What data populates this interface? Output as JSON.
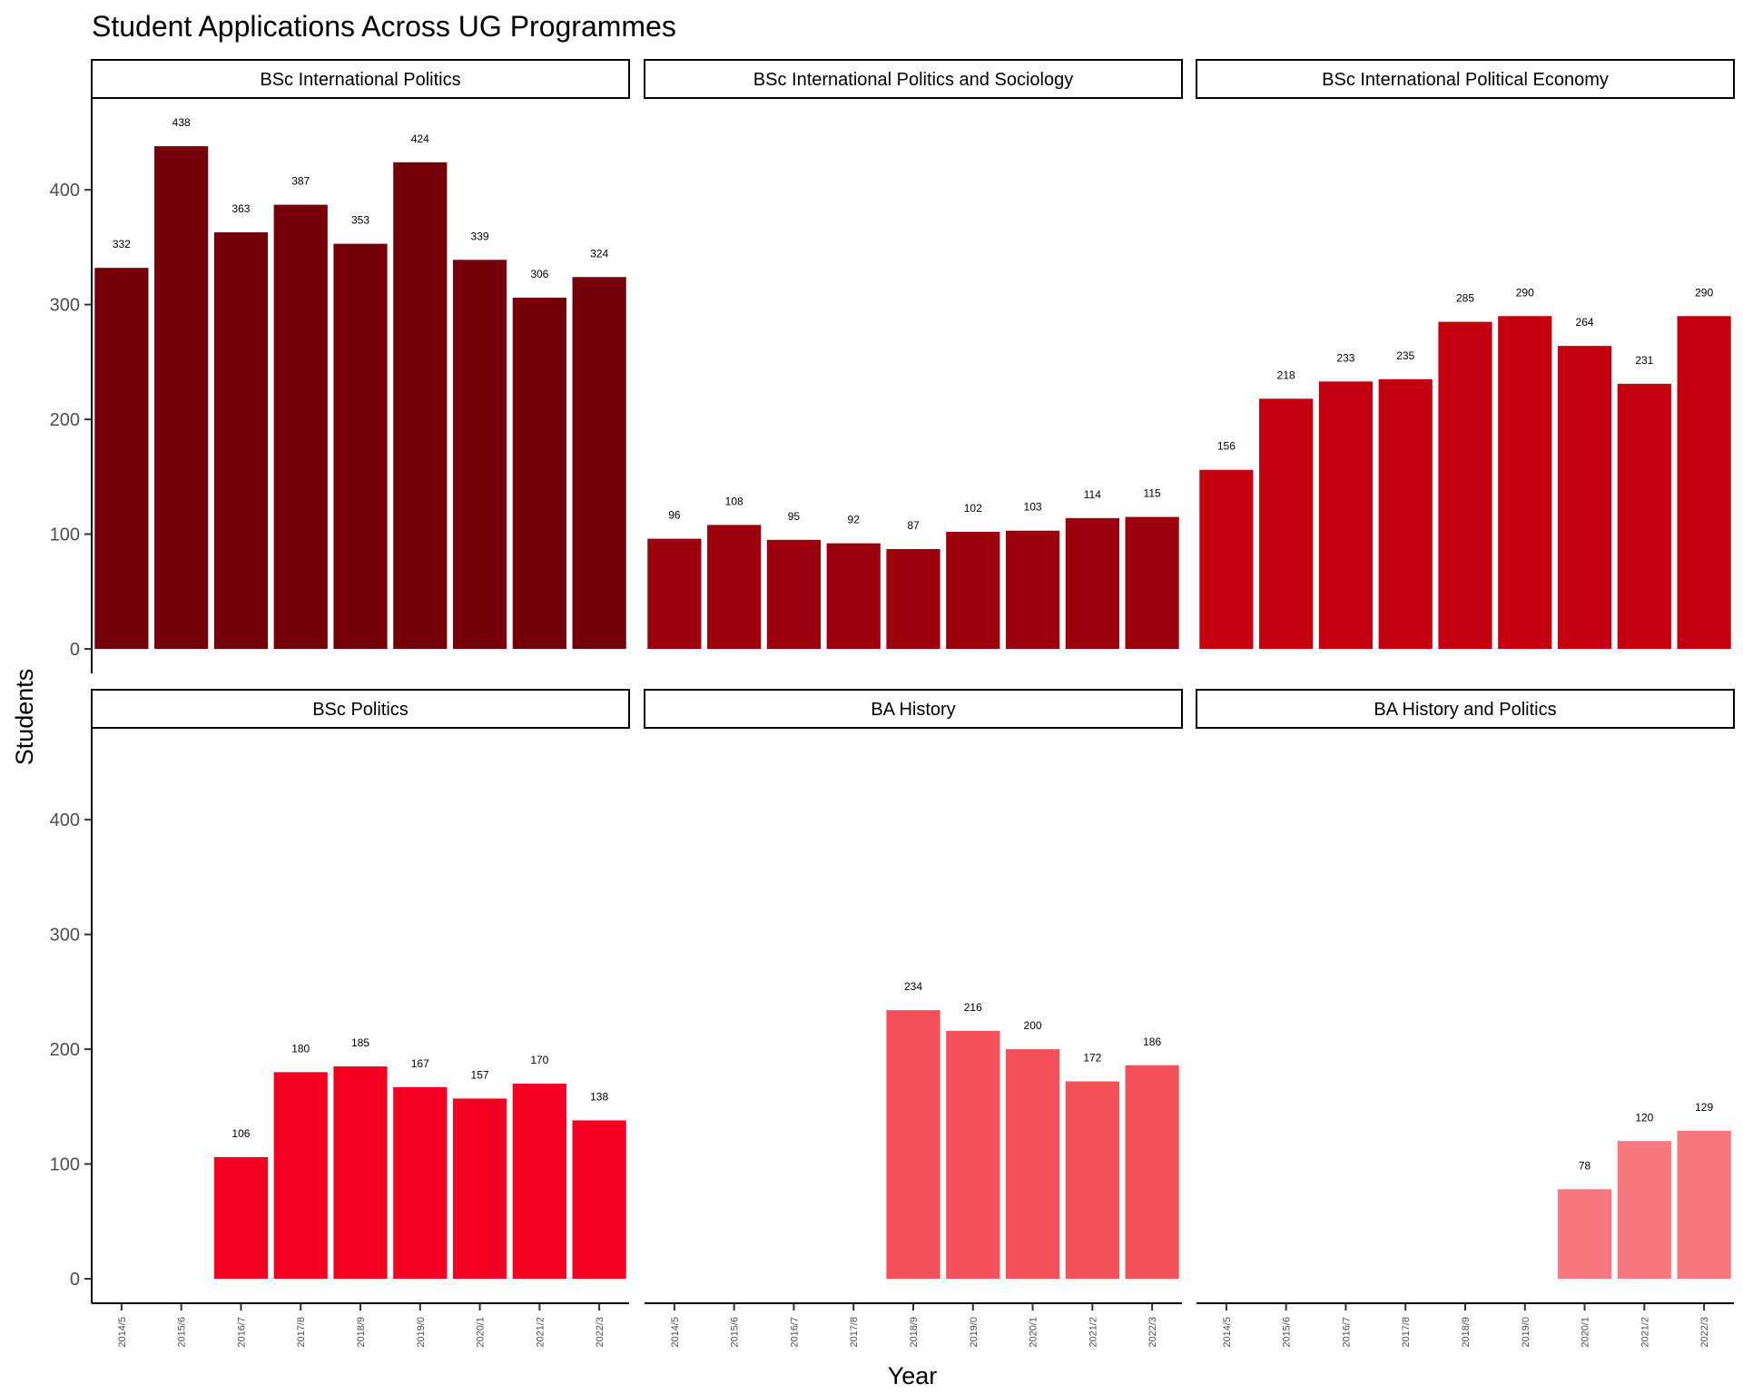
{
  "chart_data": {
    "type": "bar",
    "title": "Student Applications Across UG Programmes",
    "xlabel": "Year",
    "ylabel": "Students",
    "ylim": [
      0,
      480
    ],
    "yticks": [
      0,
      100,
      200,
      300,
      400
    ],
    "categories": [
      "2014/5",
      "2015/6",
      "2016/7",
      "2017/8",
      "2018/9",
      "2019/0",
      "2020/1",
      "2021/2",
      "2022/3"
    ],
    "grid": false,
    "legend": "none",
    "facets": [
      {
        "name": "BSc International Politics",
        "color": "#75000A",
        "values": [
          332,
          438,
          363,
          387,
          353,
          424,
          339,
          306,
          324
        ]
      },
      {
        "name": "BSc International Politics and Sociology",
        "color": "#9D000D",
        "values": [
          96,
          108,
          95,
          92,
          87,
          102,
          103,
          114,
          115
        ]
      },
      {
        "name": "BSc International Political Economy",
        "color": "#C40010",
        "values": [
          156,
          218,
          233,
          235,
          285,
          290,
          264,
          231,
          290
        ]
      },
      {
        "name": "BSc Politics",
        "color": "#F40022",
        "values": [
          null,
          null,
          106,
          180,
          185,
          167,
          157,
          170,
          138
        ]
      },
      {
        "name": "BA History",
        "color": "#F4505A",
        "values": [
          null,
          null,
          null,
          null,
          234,
          216,
          200,
          172,
          186
        ]
      },
      {
        "name": "BA History and Politics",
        "color": "#F6777C",
        "values": [
          null,
          null,
          null,
          null,
          null,
          null,
          78,
          120,
          129
        ]
      }
    ]
  }
}
